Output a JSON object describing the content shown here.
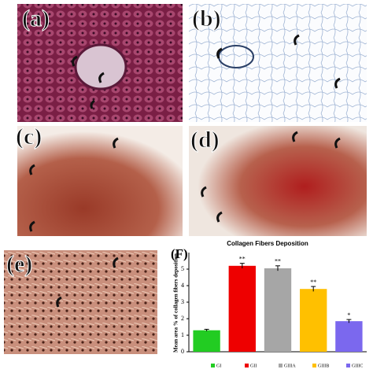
{
  "panels": [
    {
      "label": "(a)"
    },
    {
      "label": "(b)"
    },
    {
      "label": "(c)"
    },
    {
      "label": "(d)"
    },
    {
      "label": "(e)"
    }
  ],
  "chart_data": {
    "type": "bar",
    "panel_label": "(F)",
    "title": "Collagen Fibers Deposition",
    "y_label": "Mean area % of collagen fibers deposition",
    "categories": [
      "GI",
      "GII",
      "GIIIA",
      "GIIIB",
      "GIIIC"
    ],
    "values": [
      1.3,
      5.2,
      5.05,
      3.8,
      1.85
    ],
    "errors": [
      0.06,
      0.15,
      0.15,
      0.15,
      0.1
    ],
    "significance": [
      null,
      "**",
      "**",
      "**",
      "*"
    ],
    "colors": [
      "#22cc22",
      "#ee0000",
      "#a6a6a6",
      "#ffc000",
      "#7b68ee"
    ],
    "ylim": [
      0,
      6
    ],
    "yticks": [
      0,
      1,
      2,
      3,
      4,
      5
    ]
  }
}
